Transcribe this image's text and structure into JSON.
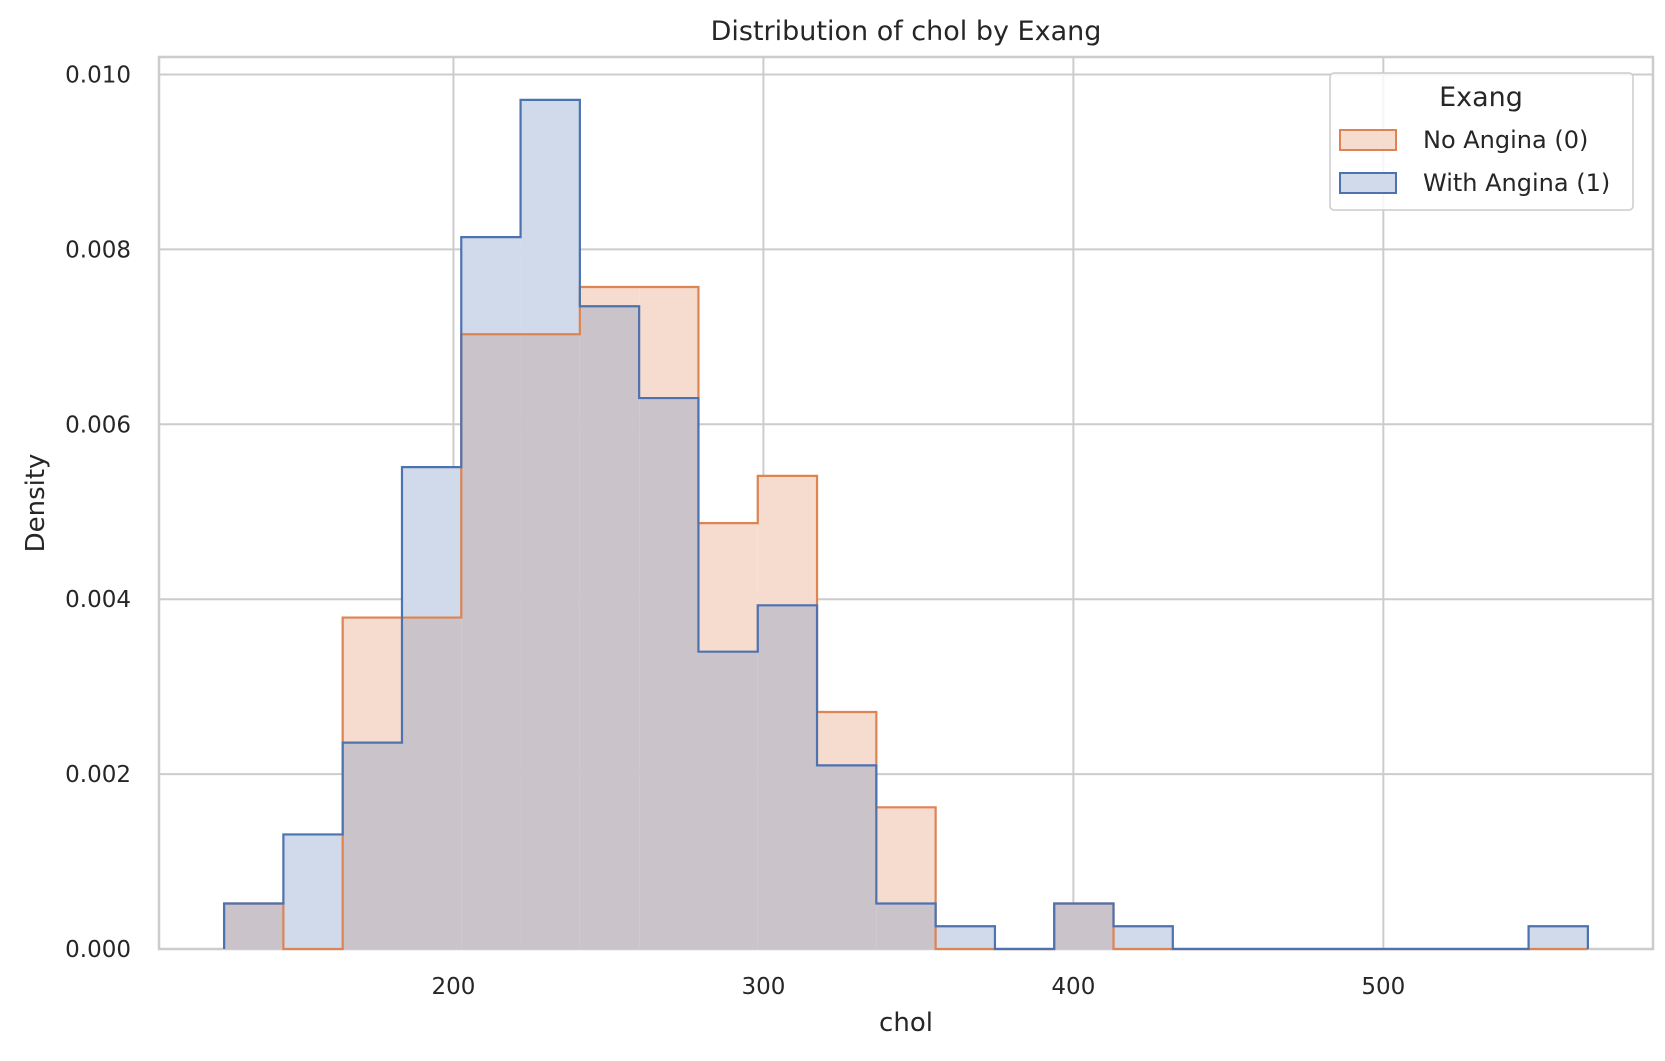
{
  "chart_data": {
    "type": "histogram",
    "title": "Distribution of chol by Exang",
    "xlabel": "chol",
    "ylabel": "Density",
    "xlim": [
      105,
      587
    ],
    "ylim": [
      0,
      0.0102
    ],
    "xticks": [
      200,
      300,
      400,
      500
    ],
    "xtick_labels": [
      "200",
      "300",
      "400",
      "500"
    ],
    "yticks": [
      0,
      0.002,
      0.004,
      0.006,
      0.008,
      0.01
    ],
    "ytick_labels": [
      "0.000",
      "0.002",
      "0.004",
      "0.006",
      "0.008",
      "0.010"
    ],
    "grid": true,
    "bin_edges": [
      126,
      145.13,
      164.26,
      183.39,
      202.52,
      221.65,
      240.78,
      259.91,
      279.04,
      298.17,
      317.3,
      336.43,
      355.56,
      374.69,
      393.82,
      412.95,
      432.08,
      451.21,
      470.34,
      489.47,
      508.6,
      527.73,
      546.86,
      565.99
    ],
    "series": [
      {
        "name": "No Angina (0)",
        "line_color": "#dd8452",
        "fill_color": "#f6dccf",
        "values": [
          0.00052,
          0.0,
          0.00379,
          0.00379,
          0.00703,
          0.00703,
          0.00757,
          0.00757,
          0.00487,
          0.00541,
          0.00271,
          0.00162,
          0.0,
          0.0,
          0.00052,
          0.0,
          0.0,
          0.0,
          0.0,
          0.0,
          0.0,
          0.0,
          0.0
        ]
      },
      {
        "name": "With Angina (1)",
        "line_color": "#4c72b0",
        "fill_color": "#d1daea",
        "values": [
          0.00052,
          0.00131,
          0.00236,
          0.00551,
          0.00814,
          0.00971,
          0.00735,
          0.0063,
          0.0034,
          0.00393,
          0.0021,
          0.00052,
          0.00026,
          0.0,
          0.00052,
          0.00026,
          0.0,
          0.0,
          0.0,
          0.0,
          0.0,
          0.0,
          0.00026
        ]
      }
    ],
    "overlap_fill_color": "#cac3ca",
    "legend": {
      "title": "Exang",
      "placement": "top-right",
      "entries": [
        "No Angina (0)",
        "With Angina (1)"
      ]
    }
  }
}
